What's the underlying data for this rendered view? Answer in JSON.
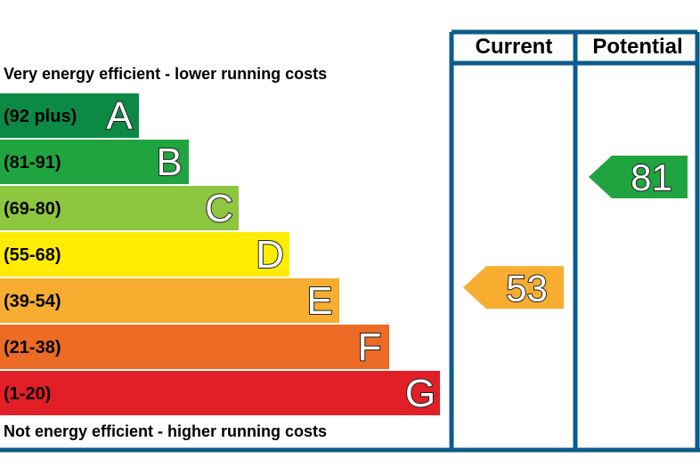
{
  "chart_data": {
    "type": "bar",
    "title": "",
    "top_caption": "Very energy efficient - lower running costs",
    "bottom_caption": "Not energy efficient - higher running costs",
    "columns": {
      "current": "Current",
      "potential": "Potential"
    },
    "bands": [
      {
        "letter": "A",
        "range": "(92 plus)",
        "min": 92,
        "max": 100,
        "color": "#0c8a45"
      },
      {
        "letter": "B",
        "range": "(81-91)",
        "min": 81,
        "max": 91,
        "color": "#1fa43f"
      },
      {
        "letter": "C",
        "range": "(69-80)",
        "min": 69,
        "max": 80,
        "color": "#8dc63f"
      },
      {
        "letter": "D",
        "range": "(55-68)",
        "min": 55,
        "max": 68,
        "color": "#ffec00"
      },
      {
        "letter": "E",
        "range": "(39-54)",
        "min": 39,
        "max": 54,
        "color": "#f7ad2f"
      },
      {
        "letter": "F",
        "range": "(21-38)",
        "min": 21,
        "max": 38,
        "color": "#ec6b25"
      },
      {
        "letter": "G",
        "range": "(1-20)",
        "min": 1,
        "max": 20,
        "color": "#e21f26"
      }
    ],
    "ratings": {
      "current": {
        "value": 53,
        "band": "E",
        "color": "#f7ad2f"
      },
      "potential": {
        "value": 81,
        "band": "B",
        "color": "#1fa43f"
      }
    },
    "border_color": "#0b5b8c"
  }
}
